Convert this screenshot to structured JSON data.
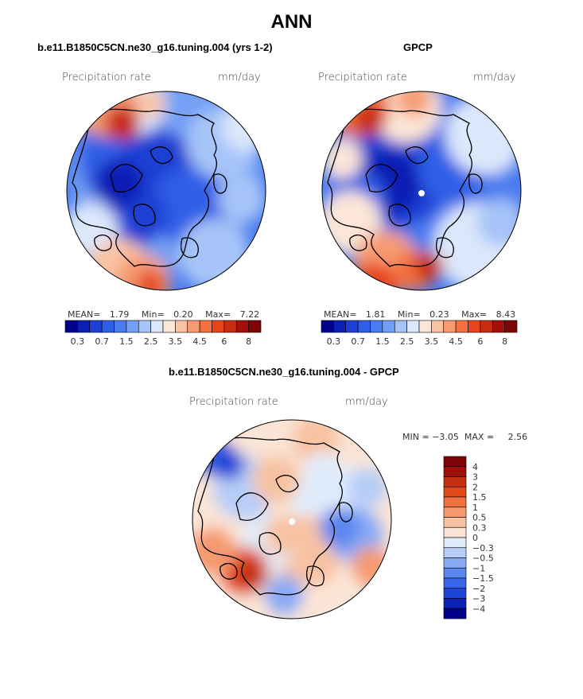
{
  "figure_title": "ANN",
  "colors": {
    "seq": [
      "#00008b",
      "#0a1fb4",
      "#1e40d4",
      "#2f5ee6",
      "#4a7cef",
      "#74a0f4",
      "#a6c4f8",
      "#dce8fb",
      "#fce6d8",
      "#f9c3a4",
      "#f69b72",
      "#f3713f",
      "#e7461a",
      "#c82c10",
      "#a30f0a",
      "#7e0507"
    ],
    "div": [
      "#00008b",
      "#0a23b4",
      "#1f45d6",
      "#3864e8",
      "#5b86f0",
      "#89aaf5",
      "#b6cdf8",
      "#e0ecfb",
      "#fbe5d6",
      "#f8c2a2",
      "#f59a70",
      "#ef723f",
      "#e24a1b",
      "#c42e11",
      "#9e110a",
      "#7e0507"
    ],
    "coast": "#000000",
    "pole": "#ffffff"
  },
  "panels": [
    {
      "id": "model",
      "title": "b.e11.B1850C5CN.ne30_g16.tuning.004 (yrs 1-2)",
      "variable": "Precipitation rate",
      "units": "mm/day",
      "stats": {
        "mean_label": "MEAN=",
        "mean": "1.79",
        "min_label": "Min=",
        "min": "0.20",
        "max_label": "Max=",
        "max": "7.22"
      },
      "colorbar_ticks": [
        "0.3",
        "0.7",
        "1.5",
        "2.5",
        "3.5",
        "4.5",
        "6",
        "8"
      ]
    },
    {
      "id": "obs",
      "title": "GPCP",
      "variable": "Precipitation rate",
      "units": "mm/day",
      "stats": {
        "mean_label": "MEAN=",
        "mean": "1.81",
        "min_label": "Min=",
        "min": "0.23",
        "max_label": "Max=",
        "max": "8.43"
      },
      "colorbar_ticks": [
        "0.3",
        "0.7",
        "1.5",
        "2.5",
        "3.5",
        "4.5",
        "6",
        "8"
      ]
    },
    {
      "id": "diff",
      "title": "b.e11.B1850C5CN.ne30_g16.tuning.004 - GPCP",
      "variable": "Precipitation rate",
      "units": "mm/day",
      "stats_line": "MIN = −3.05  MAX =     2.56",
      "colorbar_ticks": [
        "4",
        "3",
        "2",
        "1.5",
        "1",
        "0.5",
        "0.3",
        "0",
        "−0.3",
        "−0.5",
        "−1",
        "−1.5",
        "−2",
        "−3",
        "−4"
      ]
    }
  ],
  "chart_data": [
    {
      "type": "heatmap",
      "projection": "north-polar-stereographic",
      "title": "b.e11.B1850C5CN.ne30_g16.tuning.004 (yrs 1-2)",
      "variable": "Precipitation rate",
      "units": "mm/day",
      "mean": 1.79,
      "min": 0.2,
      "max": 7.22,
      "levels": [
        0.3,
        0.5,
        0.7,
        1,
        1.5,
        2,
        2.5,
        3,
        3.5,
        4,
        4.5,
        5,
        6,
        7,
        8
      ],
      "colorbar_ticks": [
        0.3,
        0.7,
        1.5,
        2.5,
        3.5,
        4.5,
        6,
        8
      ]
    },
    {
      "type": "heatmap",
      "projection": "north-polar-stereographic",
      "title": "GPCP",
      "variable": "Precipitation rate",
      "units": "mm/day",
      "mean": 1.81,
      "min": 0.23,
      "max": 8.43,
      "levels": [
        0.3,
        0.5,
        0.7,
        1,
        1.5,
        2,
        2.5,
        3,
        3.5,
        4,
        4.5,
        5,
        6,
        7,
        8
      ],
      "colorbar_ticks": [
        0.3,
        0.7,
        1.5,
        2.5,
        3.5,
        4.5,
        6,
        8
      ]
    },
    {
      "type": "heatmap",
      "projection": "north-polar-stereographic",
      "title": "b.e11.B1850C5CN.ne30_g16.tuning.004 - GPCP",
      "variable": "Precipitation rate",
      "units": "mm/day",
      "min": -3.05,
      "max": 2.56,
      "levels": [
        -4,
        -3,
        -2,
        -1.5,
        -1,
        -0.5,
        -0.3,
        0,
        0.3,
        0.5,
        1,
        1.5,
        2,
        3,
        4
      ],
      "colorbar_ticks": [
        4,
        3,
        2,
        1.5,
        1,
        0.5,
        0.3,
        0,
        -0.3,
        -0.5,
        -1,
        -1.5,
        -2,
        -3,
        -4
      ]
    }
  ]
}
